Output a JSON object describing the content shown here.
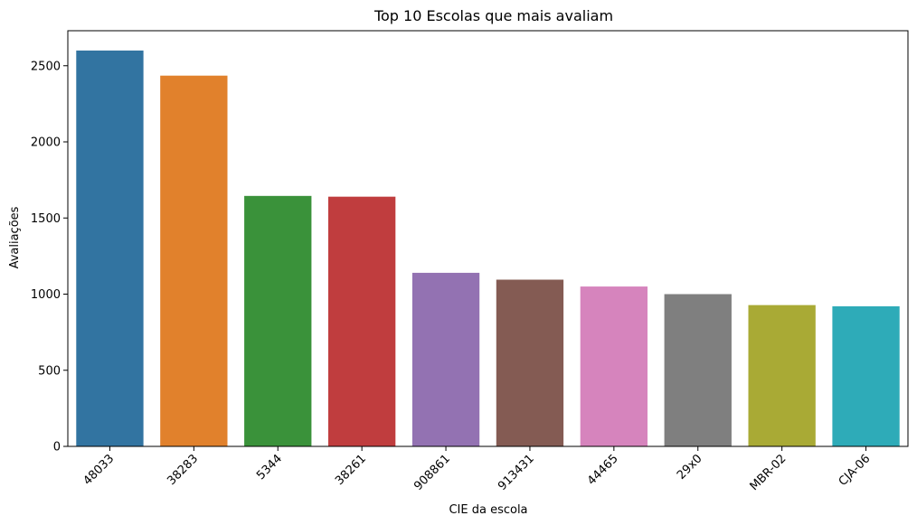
{
  "chart_data": {
    "type": "bar",
    "title": "Top 10 Escolas que mais avaliam",
    "xlabel": "CIE da escola",
    "ylabel": "Avaliações",
    "categories": [
      "48033",
      "38283",
      "5344",
      "38261",
      "908861",
      "913431",
      "44465",
      "29x0",
      "MBR-02",
      "CJA-06"
    ],
    "values": [
      2600,
      2435,
      1645,
      1640,
      1140,
      1095,
      1050,
      1000,
      928,
      920
    ],
    "colors": [
      "#3274a1",
      "#e1812c",
      "#3a923a",
      "#c03d3e",
      "#9372b2",
      "#845b53",
      "#d684bd",
      "#7f7f7f",
      "#a9aa35",
      "#2eabb8"
    ],
    "ylim": [
      0,
      2730
    ],
    "yticks": [
      0,
      500,
      1000,
      1500,
      2000,
      2500
    ],
    "grid": false,
    "legend": "none"
  }
}
